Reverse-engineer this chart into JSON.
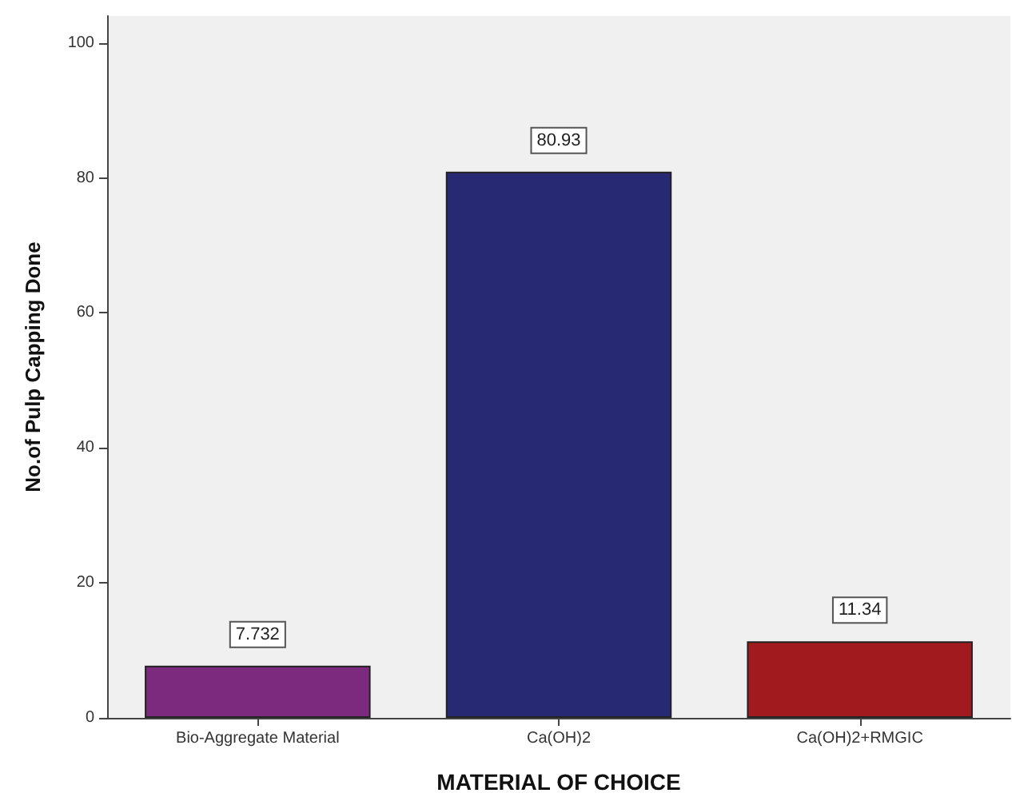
{
  "chart_data": {
    "type": "bar",
    "xlabel": "MATERIAL OF CHOICE",
    "ylabel": "No.of Pulp Capping Done",
    "categories": [
      "Bio-Aggregate Material",
      "Ca(OH)2",
      "Ca(OH)2+RMGIC"
    ],
    "values": [
      7.732,
      80.93,
      11.34
    ],
    "colors": [
      "#7b2a7e",
      "#272a73",
      "#a11a1e"
    ],
    "ylim": [
      0,
      104
    ],
    "yticks": [
      0,
      20,
      40,
      60,
      80,
      100
    ],
    "grid": false,
    "data_labels": true
  }
}
